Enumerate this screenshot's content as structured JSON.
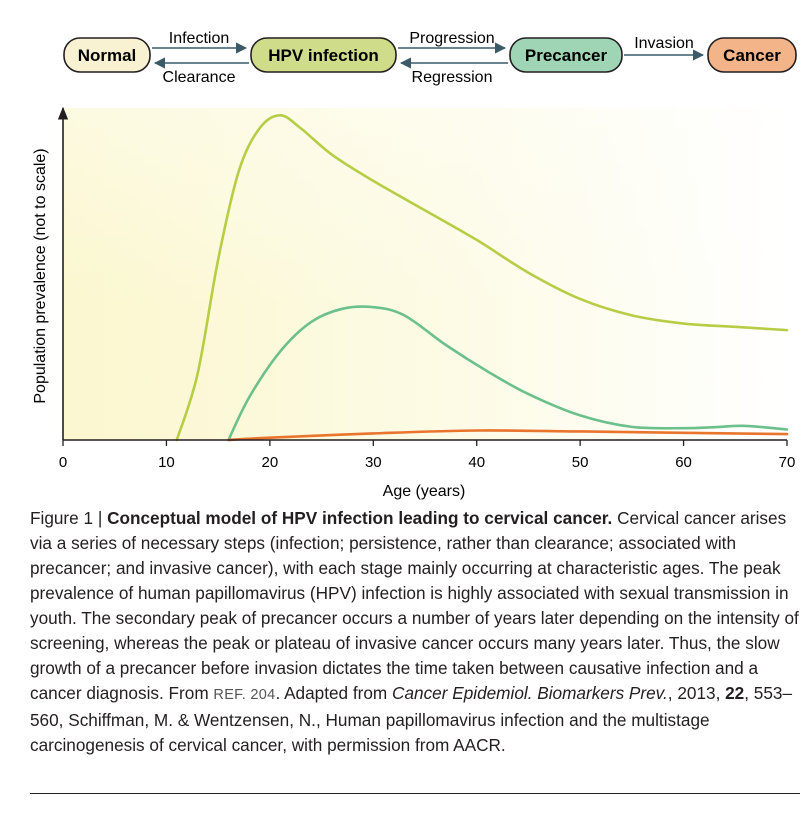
{
  "flow": {
    "nodes": [
      {
        "id": "normal",
        "label": "Normal",
        "fill": "#f8f1d2"
      },
      {
        "id": "hpv",
        "label": "HPV infection",
        "fill": "#cfdc8a"
      },
      {
        "id": "precancer",
        "label": "Precancer",
        "fill": "#9fd5b5"
      },
      {
        "id": "cancer",
        "label": "Cancer",
        "fill": "#f3b48a"
      }
    ],
    "transitions": {
      "infection": "Infection",
      "clearance": "Clearance",
      "progression": "Progression",
      "regression": "Regression",
      "invasion": "Invasion"
    },
    "node_stroke": "#231f20",
    "arrow_color": "#3a5a68"
  },
  "chart_data": {
    "type": "line",
    "title": "",
    "xlabel": "Age (years)",
    "ylabel": "Population prevalence (not to scale)",
    "xlim": [
      0,
      70
    ],
    "ylim": [
      0,
      100
    ],
    "xticks": [
      0,
      10,
      20,
      30,
      40,
      50,
      60,
      70
    ],
    "grid": false,
    "background": "#fbf7cf",
    "series": [
      {
        "name": "HPV infection",
        "color": "#b7cd45",
        "points": [
          [
            11,
            0
          ],
          [
            13,
            20
          ],
          [
            15,
            55
          ],
          [
            17,
            82
          ],
          [
            19,
            95
          ],
          [
            21,
            99
          ],
          [
            23,
            95
          ],
          [
            26,
            87
          ],
          [
            30,
            79
          ],
          [
            35,
            70
          ],
          [
            40,
            61
          ],
          [
            45,
            51
          ],
          [
            50,
            43
          ],
          [
            55,
            38
          ],
          [
            60,
            35.5
          ],
          [
            65,
            34.5
          ],
          [
            70,
            33.5
          ]
        ]
      },
      {
        "name": "Precancer",
        "color": "#6cc08c",
        "points": [
          [
            16,
            0
          ],
          [
            18,
            13
          ],
          [
            21,
            27
          ],
          [
            24,
            36
          ],
          [
            27,
            40
          ],
          [
            30,
            40.5
          ],
          [
            33,
            38
          ],
          [
            37,
            29
          ],
          [
            41,
            21
          ],
          [
            45,
            14
          ],
          [
            50,
            7.5
          ],
          [
            55,
            4
          ],
          [
            60,
            3.6
          ],
          [
            63,
            3.9
          ],
          [
            66,
            4.3
          ],
          [
            70,
            3.2
          ]
        ]
      },
      {
        "name": "Cancer",
        "color": "#e8742e",
        "points": [
          [
            16,
            0
          ],
          [
            20,
            0.7
          ],
          [
            30,
            2
          ],
          [
            40,
            2.9
          ],
          [
            50,
            2.6
          ],
          [
            60,
            2.2
          ],
          [
            70,
            1.8
          ]
        ]
      }
    ]
  },
  "caption": {
    "figure_label": "Figure 1 |",
    "title": "Conceptual model of HPV infection leading to cervical cancer.",
    "body": "Cervical cancer arises via a series of necessary steps (infection; persistence, rather than clearance; associated with precancer; and invasive cancer), with each stage mainly occurring at characteristic ages. The peak prevalence of human papillomavirus (HPV) infection is highly associated with sexual transmission in youth. The secondary peak of precancer occurs a number of years later depending on the intensity of screening, whereas the peak or plateau of invasive cancer occurs many years later. Thus, the slow growth of a precancer before invasion dictates the time taken between causative infection and a cancer diagnosis. From",
    "ref": "REF. 204",
    "adapted": ". Adapted from",
    "journal": "Cancer Epidemiol. Biomarkers Prev.",
    "year": ", 2013,",
    "volume": "22",
    "rest": ", 553–560, Schiffman, M. & Wentzensen, N., Human papillomavirus infection and the multistage carcinogenesis of cervical cancer, with permission from AACR."
  }
}
